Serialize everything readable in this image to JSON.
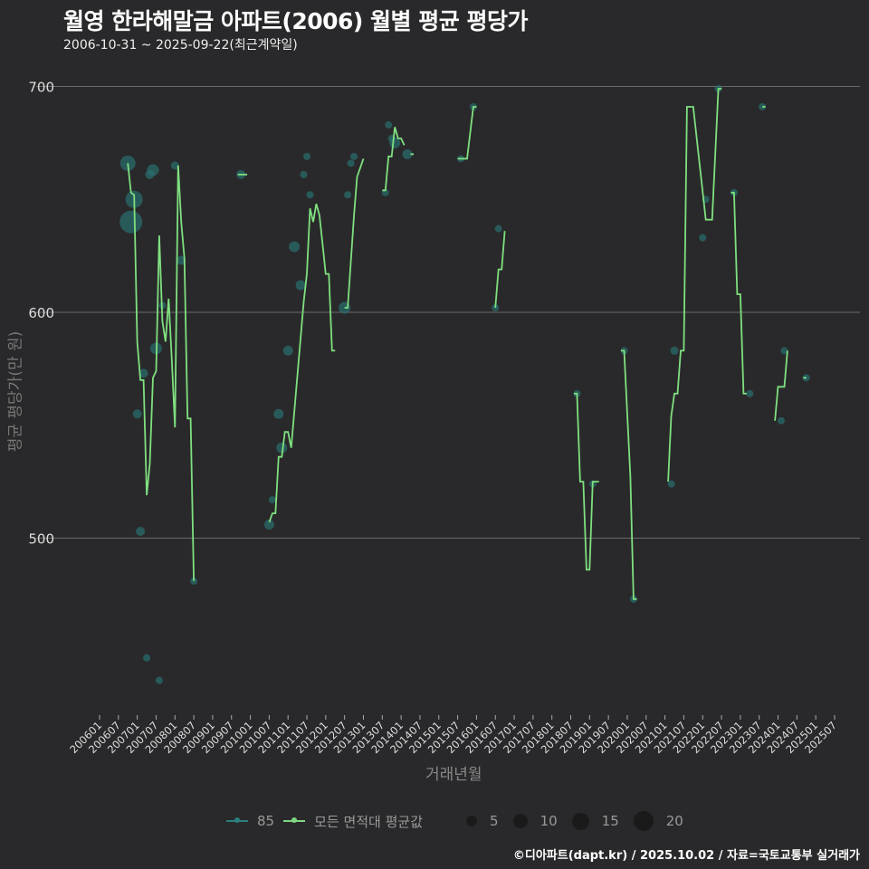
{
  "header": {
    "title": "월영 한라해말금 아파트(2006) 월별 평균 평당가",
    "subtitle": "2006-10-31 ~ 2025-09-22(최근계약일)"
  },
  "axes": {
    "ylabel": "평균 평당가(만 원)",
    "xlabel": "거래년월",
    "yticks": [
      "700",
      "600",
      "500"
    ]
  },
  "legend": {
    "series": [
      {
        "label": "85",
        "color": "#2a7f7f"
      },
      {
        "label": "모든 면적대 평균값",
        "color": "#7fd67f"
      }
    ],
    "sizes": [
      "5",
      "10",
      "15",
      "20"
    ]
  },
  "footer": "©디아파트(dapt.kr) / 2025.10.02 / 자료=국토교통부 실거래가",
  "colors": {
    "background": "#29292b",
    "grid": "#6a6a6a",
    "line": "#7fe07f",
    "points": "#2a6f6f"
  },
  "chart_data": {
    "type": "line",
    "title": "월영 한라해말금 아파트(2006) 월별 평균 평당가",
    "subtitle": "2006-10-31 ~ 2025-09-22(최근계약일)",
    "xlabel": "거래년월",
    "ylabel": "평균 평당가(만 원)",
    "ylim": [
      435,
      705
    ],
    "yticks": [
      500,
      600,
      700
    ],
    "grid": true,
    "legend_position": "bottom",
    "categories": [
      "200601",
      "200607",
      "200701",
      "200707",
      "200801",
      "200807",
      "200901",
      "200907",
      "201001",
      "201007",
      "201101",
      "201107",
      "201201",
      "201207",
      "201301",
      "201307",
      "201401",
      "201407",
      "201501",
      "201507",
      "201601",
      "201607",
      "201701",
      "201707",
      "201801",
      "201807",
      "201901",
      "201907",
      "202001",
      "202007",
      "202101",
      "202107",
      "202201",
      "202207",
      "202301",
      "202307",
      "202401",
      "202407",
      "202501",
      "202507"
    ],
    "series": [
      {
        "name": "모든 면적대 평균값",
        "segments": [
          [
            [
              "200610",
              666
            ],
            [
              "200611",
              653
            ],
            [
              "200612",
              652
            ],
            [
              "200701",
              587
            ],
            [
              "200702",
              570
            ],
            [
              "200703",
              570
            ],
            [
              "200704",
              519
            ],
            [
              "200705",
              533
            ],
            [
              "200706",
              571
            ],
            [
              "200707",
              574
            ],
            [
              "200708",
              634
            ],
            [
              "200709",
              596
            ],
            [
              "200710",
              587
            ],
            [
              "200711",
              606
            ],
            [
              "200712",
              579
            ],
            [
              "200801",
              549
            ],
            [
              "200802",
              665
            ],
            [
              "200803",
              640
            ],
            [
              "200804",
              624
            ],
            [
              "200805",
              553
            ],
            [
              "200806",
              553
            ],
            [
              "200807",
              481
            ]
          ],
          [
            [
              "200909",
              661
            ],
            [
              "200912",
              661
            ]
          ],
          [
            [
              "201007",
              507
            ],
            [
              "201008",
              511
            ],
            [
              "201009",
              511
            ],
            [
              "201010",
              536
            ],
            [
              "201011",
              536
            ],
            [
              "201012",
              547
            ],
            [
              "201101",
              547
            ],
            [
              "201102",
              540
            ],
            [
              "201106",
              605
            ],
            [
              "201107",
              617
            ],
            [
              "201108",
              646
            ],
            [
              "201109",
              640
            ],
            [
              "201110",
              648
            ],
            [
              "201111",
              643
            ],
            [
              "201112",
              630
            ],
            [
              "201201",
              617
            ],
            [
              "201202",
              617
            ],
            [
              "201203",
              583
            ],
            [
              "201204",
              583
            ]
          ],
          [
            [
              "201207",
              602
            ],
            [
              "201208",
              602
            ],
            [
              "201210",
              643
            ],
            [
              "201211",
              660
            ],
            [
              "201212",
              664
            ],
            [
              "201301",
              668
            ]
          ],
          [
            [
              "201307",
              654
            ],
            [
              "201308",
              654
            ],
            [
              "201309",
              669
            ],
            [
              "201310",
              669
            ],
            [
              "201311",
              682
            ],
            [
              "201312",
              677
            ],
            [
              "201401",
              677
            ],
            [
              "201402",
              674
            ]
          ],
          [
            [
              "201404",
              670
            ],
            [
              "201405",
              670
            ]
          ],
          [
            [
              "201507",
              668
            ],
            [
              "201510",
              668
            ],
            [
              "201512",
              691
            ],
            [
              "201601",
              691
            ]
          ],
          [
            [
              "201607",
              602
            ],
            [
              "201608",
              619
            ],
            [
              "201609",
              619
            ],
            [
              "201610",
              636
            ]
          ],
          [
            [
              "201808",
              564
            ],
            [
              "201809",
              564
            ],
            [
              "201810",
              525
            ],
            [
              "201811",
              525
            ],
            [
              "201812",
              486
            ],
            [
              "201901",
              486
            ],
            [
              "201902",
              525
            ],
            [
              "201904",
              525
            ]
          ],
          [
            [
              "201911",
              583
            ],
            [
              "201912",
              583
            ],
            [
              "202002",
              527
            ],
            [
              "202003",
              473
            ],
            [
              "202004",
              473
            ]
          ],
          [
            [
              "202102",
              525
            ],
            [
              "202103",
              554
            ],
            [
              "202104",
              564
            ],
            [
              "202105",
              564
            ],
            [
              "202106",
              583
            ],
            [
              "202107",
              583
            ],
            [
              "202108",
              691
            ],
            [
              "202109",
              691
            ],
            [
              "202110",
              691
            ],
            [
              "202202",
              641
            ],
            [
              "202203",
              641
            ],
            [
              "202204",
              641
            ],
            [
              "202206",
              699
            ],
            [
              "202207",
              699
            ]
          ],
          [
            [
              "202210",
              653
            ],
            [
              "202211",
              653
            ],
            [
              "202212",
              608
            ],
            [
              "202301",
              608
            ],
            [
              "202302",
              564
            ],
            [
              "202303",
              564
            ]
          ],
          [
            [
              "202308",
              691
            ],
            [
              "202309",
              691
            ]
          ],
          [
            [
              "202312",
              552
            ],
            [
              "202401",
              567
            ],
            [
              "202403",
              567
            ],
            [
              "202404",
              583
            ]
          ],
          [
            [
              "202409",
              571
            ],
            [
              "202410",
              571
            ]
          ]
        ]
      },
      {
        "name": "85",
        "points": [
          [
            "200610",
            666,
            12
          ],
          [
            "200611",
            640,
            20
          ],
          [
            "200612",
            650,
            14
          ],
          [
            "200701",
            555,
            5
          ],
          [
            "200702",
            503,
            5
          ],
          [
            "200703",
            573,
            5
          ],
          [
            "200704",
            447,
            3
          ],
          [
            "200705",
            661,
            5
          ],
          [
            "200706",
            663,
            8
          ],
          [
            "200707",
            584,
            8
          ],
          [
            "200708",
            437,
            3
          ],
          [
            "200709",
            603,
            3
          ],
          [
            "200801",
            665,
            4
          ],
          [
            "200803",
            623,
            5
          ],
          [
            "200807",
            481,
            3
          ],
          [
            "200910",
            661,
            5
          ],
          [
            "201007",
            506,
            6
          ],
          [
            "201008",
            517,
            3
          ],
          [
            "201010",
            555,
            6
          ],
          [
            "201011",
            540,
            7
          ],
          [
            "201101",
            583,
            6
          ],
          [
            "201103",
            629,
            7
          ],
          [
            "201105",
            612,
            6
          ],
          [
            "201106",
            661,
            3
          ],
          [
            "201107",
            669,
            3
          ],
          [
            "201108",
            652,
            3
          ],
          [
            "201207",
            602,
            8
          ],
          [
            "201208",
            652,
            3
          ],
          [
            "201209",
            666,
            3
          ],
          [
            "201210",
            669,
            3
          ],
          [
            "201308",
            653,
            3
          ],
          [
            "201309",
            683,
            3
          ],
          [
            "201310",
            677,
            3
          ],
          [
            "201311",
            675,
            7
          ],
          [
            "201403",
            670,
            6
          ],
          [
            "201508",
            668,
            3
          ],
          [
            "201512",
            691,
            3
          ],
          [
            "201607",
            602,
            3
          ],
          [
            "201608",
            637,
            3
          ],
          [
            "201809",
            564,
            3
          ],
          [
            "201902",
            524,
            3
          ],
          [
            "201912",
            583,
            3
          ],
          [
            "202003",
            473,
            3
          ],
          [
            "202103",
            524,
            3
          ],
          [
            "202104",
            583,
            4
          ],
          [
            "202201",
            633,
            3
          ],
          [
            "202202",
            650,
            3
          ],
          [
            "202206",
            699,
            3
          ],
          [
            "202211",
            653,
            3
          ],
          [
            "202304",
            564,
            3
          ],
          [
            "202308",
            691,
            3
          ],
          [
            "202402",
            552,
            3
          ],
          [
            "202403",
            583,
            3
          ],
          [
            "202410",
            571,
            3
          ]
        ]
      }
    ]
  }
}
